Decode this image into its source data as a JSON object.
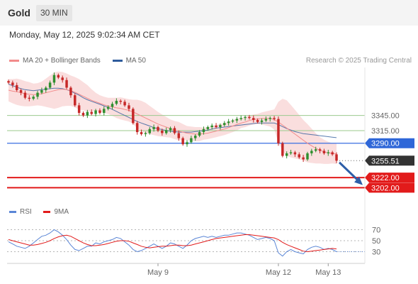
{
  "header": {
    "instrument": "Gold",
    "timeframe": "30 MIN"
  },
  "datetime": "Monday, May 12, 2025 9:02:34 AM CET",
  "legend": {
    "price": [
      {
        "name": "MA 20 + Bollinger Bands",
        "color": "#f28b8b"
      },
      {
        "name": "MA 50",
        "color": "#2e5b9c"
      }
    ],
    "rsi": [
      {
        "name": "RSI",
        "color": "#5a86d6"
      },
      {
        "name": "9MA",
        "color": "#e21b1b"
      }
    ]
  },
  "credit": "Research © 2025 Trading Central",
  "colors": {
    "up": "#2f8f2f",
    "down": "#c62828",
    "band": "#f8d3d3",
    "ma20": "#f28b8b",
    "ma50": "#2e5b9c",
    "arrow": "#2d5ea8"
  },
  "chart_data": {
    "type": "candlestick",
    "ylim": [
      3180,
      3440
    ],
    "series_note": "approximate 30-minute closes read off the chart",
    "close": [
      3410,
      3405,
      3395,
      3390,
      3380,
      3378,
      3382,
      3390,
      3395,
      3400,
      3410,
      3425,
      3420,
      3415,
      3400,
      3385,
      3365,
      3350,
      3345,
      3352,
      3348,
      3355,
      3350,
      3358,
      3362,
      3368,
      3374,
      3372,
      3365,
      3358,
      3330,
      3312,
      3308,
      3310,
      3318,
      3322,
      3315,
      3310,
      3316,
      3320,
      3310,
      3300,
      3288,
      3292,
      3300,
      3305,
      3312,
      3318,
      3322,
      3325,
      3322,
      3326,
      3330,
      3333,
      3335,
      3338,
      3340,
      3342,
      3340,
      3336,
      3332,
      3335,
      3338,
      3340,
      3338,
      3290,
      3265,
      3270,
      3272,
      3268,
      3262,
      3258,
      3270,
      3275,
      3278,
      3275,
      3270,
      3272,
      3268,
      3255.51
    ],
    "ma20": [
      3395,
      3393,
      3392,
      3390,
      3388,
      3387,
      3386,
      3387,
      3388,
      3390,
      3392,
      3394,
      3396,
      3397,
      3396,
      3394,
      3391,
      3387,
      3383,
      3379,
      3375,
      3372,
      3369,
      3366,
      3364,
      3362,
      3360,
      3359,
      3357,
      3355,
      3352,
      3348,
      3344,
      3340,
      3336,
      3332,
      3328,
      3325,
      3322,
      3319,
      3316,
      3314,
      3312,
      3310,
      3309,
      3308,
      3308,
      3309,
      3310,
      3312,
      3314,
      3316,
      3318,
      3321,
      3324,
      3327,
      3330,
      3332,
      3335,
      3337,
      3338,
      3339,
      3339,
      3339,
      3337,
      3332,
      3326,
      3320,
      3314,
      3308,
      3302,
      3296,
      3290,
      3285,
      3280,
      3276,
      3273,
      3271,
      3270,
      3269
    ],
    "ma50": [
      3407,
      3404,
      3401,
      3398,
      3396,
      3395,
      3394,
      3395,
      3396,
      3397,
      3398,
      3399,
      3399,
      3398,
      3396,
      3393,
      3389,
      3385,
      3380,
      3376,
      3373,
      3370,
      3367,
      3364,
      3361,
      3357,
      3353,
      3349,
      3345,
      3341,
      3337,
      3333,
      3330,
      3327,
      3324,
      3321,
      3319,
      3317,
      3315,
      3314,
      3313,
      3312,
      3312,
      3312,
      3312,
      3313,
      3314,
      3315,
      3316,
      3318,
      3320,
      3321,
      3322,
      3323,
      3324,
      3325,
      3326,
      3327,
      3328,
      3329,
      3330,
      3330,
      3330,
      3330,
      3330,
      3327,
      3323,
      3319,
      3316,
      3313,
      3311,
      3309,
      3308,
      3307,
      3306,
      3305,
      3304,
      3303,
      3302,
      3301
    ],
    "bands_halfwidth": [
      22,
      24,
      26,
      26,
      25,
      24,
      22,
      22,
      24,
      28,
      32,
      36,
      36,
      34,
      32,
      30,
      30,
      30,
      28,
      26,
      22,
      18,
      16,
      16,
      16,
      18,
      20,
      22,
      22,
      22,
      24,
      28,
      30,
      30,
      28,
      26,
      24,
      22,
      20,
      18,
      18,
      18,
      16,
      14,
      14,
      14,
      14,
      12,
      12,
      12,
      12,
      12,
      12,
      12,
      12,
      12,
      10,
      10,
      10,
      10,
      10,
      12,
      14,
      16,
      20,
      40,
      52,
      55,
      52,
      48,
      44,
      40,
      38,
      34,
      30,
      26,
      24,
      22,
      20,
      20
    ],
    "levels": [
      {
        "value": 3345.0,
        "label": "3345.00",
        "style": "thin-green"
      },
      {
        "value": 3315.0,
        "label": "3315.00",
        "style": "thin-green"
      },
      {
        "value": 3290.0,
        "label": "3290.00",
        "style": "blue"
      },
      {
        "value": 3255.51,
        "label": "3255.51",
        "style": "last"
      },
      {
        "value": 3222.0,
        "label": "3222.00",
        "style": "red"
      },
      {
        "value": 3202.0,
        "label": "3202.00",
        "style": "red"
      }
    ],
    "x_labels": [
      {
        "index": 36,
        "label": "May 9"
      },
      {
        "index": 65,
        "label": "May 12"
      },
      {
        "index": 77,
        "label": "May 13"
      }
    ],
    "rsi": {
      "ylim": [
        10,
        90
      ],
      "y_ticks": [
        70,
        50,
        30
      ],
      "values": [
        48,
        44,
        40,
        38,
        36,
        40,
        46,
        52,
        58,
        60,
        64,
        70,
        66,
        60,
        52,
        42,
        34,
        32,
        36,
        40,
        40,
        46,
        44,
        48,
        50,
        52,
        56,
        54,
        48,
        42,
        34,
        30,
        32,
        36,
        40,
        44,
        40,
        36,
        40,
        46,
        44,
        40,
        36,
        42,
        50,
        54,
        56,
        58,
        56,
        58,
        56,
        58,
        60,
        60,
        62,
        64,
        64,
        62,
        60,
        56,
        52,
        54,
        56,
        54,
        50,
        28,
        22,
        30,
        34,
        30,
        28,
        26,
        34,
        38,
        40,
        38,
        34,
        36,
        34,
        30
      ],
      "ma9": [
        52,
        50,
        48,
        46,
        44,
        42,
        42,
        43,
        45,
        47,
        50,
        54,
        57,
        59,
        60,
        58,
        54,
        50,
        46,
        43,
        41,
        41,
        42,
        43,
        45,
        47,
        49,
        50,
        50,
        49,
        46,
        43,
        40,
        38,
        37,
        38,
        39,
        40,
        40,
        41,
        42,
        42,
        41,
        41,
        42,
        44,
        46,
        48,
        50,
        52,
        54,
        55,
        56,
        57,
        58,
        59,
        60,
        61,
        61,
        60,
        59,
        58,
        57,
        56,
        55,
        52,
        47,
        43,
        40,
        37,
        34,
        31,
        30,
        31,
        32,
        33,
        34,
        35,
        36,
        35
      ]
    }
  }
}
